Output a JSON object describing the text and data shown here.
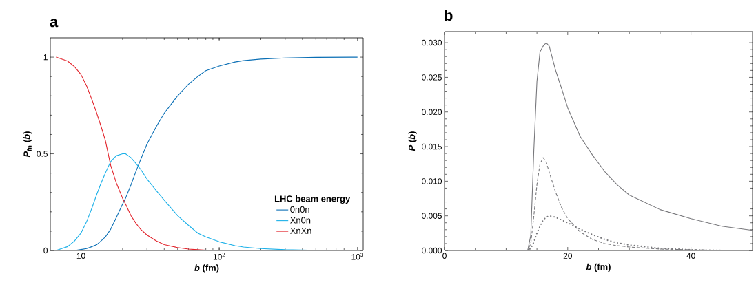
{
  "chart_data": [
    {
      "type": "line",
      "title": "a",
      "xlabel": "*b* (fm)",
      "ylabel": "*P*$_{fn}$ (*b*)",
      "legend_title": "LHC beam energy",
      "log": "x",
      "legend": "bottom right",
      "marker": "none",
      "xlim": [
        6,
        1100
      ],
      "ylim": [
        0,
        1.1
      ],
      "xticks": [
        10,
        {
          "value": 100,
          "label": "10$^{2}$"
        },
        {
          "value": 1000,
          "label": "10$^{3}$"
        }
      ],
      "yticks": [
        0,
        0.5,
        1
      ],
      "x": [
        6.6,
        8,
        9,
        10,
        11,
        12,
        13,
        14,
        15,
        16.4,
        18,
        20,
        21,
        23,
        25,
        27,
        30,
        35,
        40,
        50,
        60,
        70,
        80,
        100,
        130,
        150,
        200,
        300,
        500,
        1000
      ],
      "series": [
        {
          "name": "0n0n",
          "color": "#0a6fb5",
          "values": [
            0,
            0,
            0,
            0.005,
            0.01,
            0.02,
            0.03,
            0.05,
            0.07,
            0.11,
            0.17,
            0.24,
            0.27,
            0.34,
            0.41,
            0.47,
            0.55,
            0.64,
            0.71,
            0.8,
            0.86,
            0.9,
            0.93,
            0.954,
            0.975,
            0.982,
            0.99,
            0.996,
            0.999,
            1.0
          ]
        },
        {
          "name": "Xn0n",
          "color": "#1bb0e8",
          "values": [
            0,
            0.02,
            0.05,
            0.09,
            0.15,
            0.22,
            0.29,
            0.35,
            0.4,
            0.46,
            0.49,
            0.5,
            0.5,
            0.48,
            0.45,
            0.42,
            0.37,
            0.31,
            0.26,
            0.18,
            0.13,
            0.09,
            0.07,
            0.045,
            0.025,
            0.018,
            0.01,
            0.004,
            0.001,
            null
          ]
        },
        {
          "name": "XnXn",
          "color": "#e2222a",
          "values": [
            1.0,
            0.98,
            0.95,
            0.91,
            0.85,
            0.78,
            0.71,
            0.64,
            0.57,
            0.44,
            0.35,
            0.27,
            0.24,
            0.18,
            0.14,
            0.11,
            0.08,
            0.05,
            0.03,
            0.015,
            0.007,
            0.004,
            0.002,
            0.001,
            null,
            null,
            null,
            null,
            null,
            null
          ]
        }
      ]
    },
    {
      "type": "line",
      "title": "b",
      "xlabel": "*b* (fm)",
      "ylabel": "*P* (*b*)",
      "marker": "none",
      "xlim": [
        0,
        50
      ],
      "ylim": [
        0,
        0.0316
      ],
      "xticks": [
        0,
        20,
        40
      ],
      "yticks": [
        {
          "value": 0,
          "label": "0.000"
        },
        {
          "value": 0.005,
          "label": "0.005"
        },
        {
          "value": 0.01,
          "label": "0.010"
        },
        {
          "value": 0.015,
          "label": "0.015"
        },
        {
          "value": 0.02,
          "label": "0.020"
        },
        {
          "value": 0.025,
          "label": "0.025"
        },
        {
          "value": 0.03,
          "label": "0.030"
        }
      ],
      "x": [
        0,
        13.5,
        14,
        14.5,
        15,
        15.5,
        16,
        16.5,
        17,
        18,
        19,
        20,
        22,
        24,
        26,
        28,
        30,
        35,
        40,
        45,
        50
      ],
      "series": [
        {
          "color": "#77777b",
          "line_style": "solid",
          "values": [
            0,
            0,
            0.0022,
            0.0145,
            0.0244,
            0.0287,
            0.0295,
            0.03,
            0.0295,
            0.0261,
            0.0234,
            0.0206,
            0.0165,
            0.0138,
            0.0114,
            0.0095,
            0.008,
            0.0059,
            0.0046,
            0.0035,
            0.0029
          ]
        },
        {
          "color": "#77777b",
          "line_style": "dashed",
          "values": [
            0,
            0,
            0.001,
            0.005,
            0.0095,
            0.0125,
            0.0134,
            0.0128,
            0.0113,
            0.0085,
            0.0062,
            0.0046,
            0.0027,
            0.0016,
            0.001,
            0.0007,
            0.0005,
            0.0002,
            0.0001,
            0,
            0
          ]
        },
        {
          "color": "#77777b",
          "line_style": "dotted",
          "values": [
            0,
            0,
            0.0003,
            0.0012,
            0.0025,
            0.0035,
            0.0044,
            0.0048,
            0.005,
            0.0048,
            0.0044,
            0.004,
            0.0031,
            0.0023,
            0.0016,
            0.0011,
            0.0008,
            0.0003,
            0.0001,
            0,
            0
          ]
        }
      ]
    }
  ]
}
